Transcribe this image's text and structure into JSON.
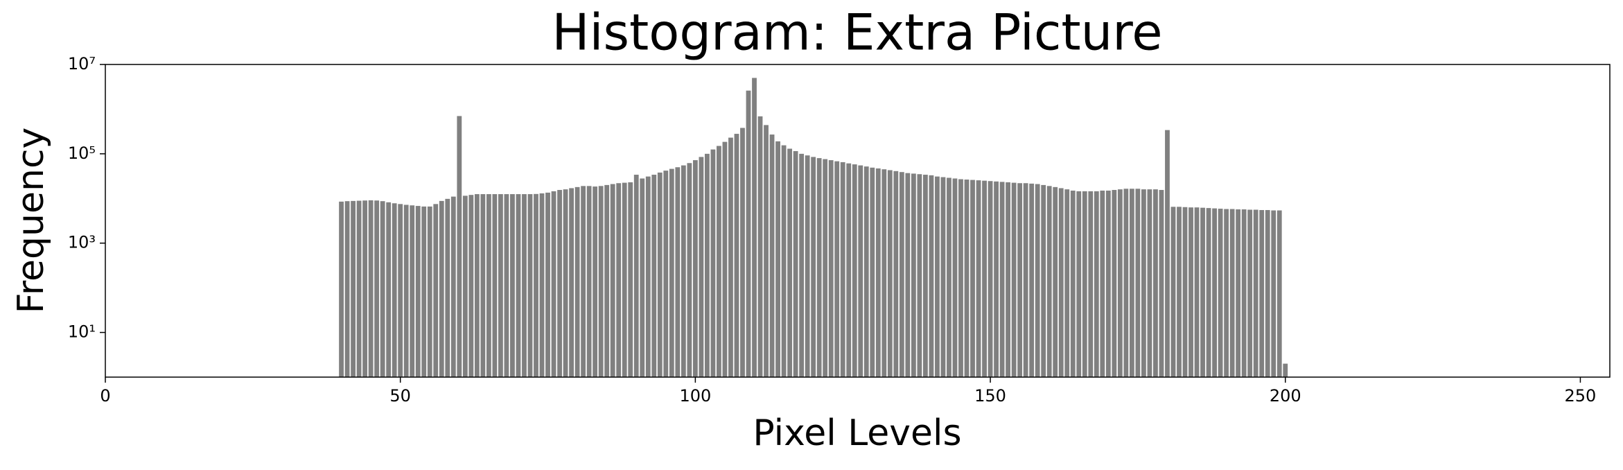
{
  "chart_data": {
    "type": "bar",
    "title": "Histogram: Extra Picture",
    "xlabel": "Pixel Levels",
    "ylabel": "Frequency",
    "x": [
      40,
      41,
      42,
      43,
      44,
      45,
      46,
      47,
      48,
      49,
      50,
      51,
      52,
      53,
      54,
      55,
      56,
      57,
      58,
      59,
      60,
      61,
      62,
      63,
      64,
      65,
      66,
      67,
      68,
      69,
      70,
      71,
      72,
      73,
      74,
      75,
      76,
      77,
      78,
      79,
      80,
      81,
      82,
      83,
      84,
      85,
      86,
      87,
      88,
      89,
      90,
      91,
      92,
      93,
      94,
      95,
      96,
      97,
      98,
      99,
      100,
      101,
      102,
      103,
      104,
      105,
      106,
      107,
      108,
      109,
      110,
      111,
      112,
      113,
      114,
      115,
      116,
      117,
      118,
      119,
      120,
      121,
      122,
      123,
      124,
      125,
      126,
      127,
      128,
      129,
      130,
      131,
      132,
      133,
      134,
      135,
      136,
      137,
      138,
      139,
      140,
      141,
      142,
      143,
      144,
      145,
      146,
      147,
      148,
      149,
      150,
      151,
      152,
      153,
      154,
      155,
      156,
      157,
      158,
      159,
      160,
      161,
      162,
      163,
      164,
      165,
      166,
      167,
      168,
      169,
      170,
      171,
      172,
      173,
      174,
      175,
      176,
      177,
      178,
      179,
      180,
      181,
      182,
      183,
      184,
      185,
      186,
      187,
      188,
      189,
      190,
      191,
      192,
      193,
      194,
      195,
      196,
      197,
      198,
      199,
      200
    ],
    "values": [
      8500,
      8700,
      8800,
      8900,
      9000,
      9100,
      9000,
      8700,
      8200,
      7800,
      7500,
      7200,
      7000,
      6800,
      6600,
      6600,
      7500,
      8800,
      9800,
      11000,
      700000,
      11500,
      12000,
      12500,
      12500,
      12500,
      12500,
      12500,
      12500,
      12500,
      12500,
      12500,
      12500,
      12600,
      13000,
      13500,
      14500,
      15500,
      16000,
      17000,
      18000,
      19000,
      19000,
      18500,
      19000,
      20000,
      21000,
      22000,
      22500,
      23000,
      34000,
      28000,
      31000,
      34000,
      38000,
      42000,
      46000,
      50000,
      55000,
      62000,
      72000,
      85000,
      100000,
      125000,
      150000,
      185000,
      230000,
      280000,
      380000,
      2600000,
      5000000,
      690000,
      440000,
      270000,
      190000,
      155000,
      130000,
      115000,
      100000,
      92000,
      85000,
      80000,
      76000,
      72000,
      68000,
      65000,
      61000,
      58000,
      55000,
      52000,
      49000,
      47000,
      45000,
      43000,
      41000,
      39000,
      37000,
      36000,
      35000,
      34000,
      33000,
      31000,
      30000,
      29000,
      28000,
      27000,
      26500,
      26000,
      25500,
      25000,
      24500,
      24000,
      23500,
      23000,
      22500,
      22000,
      22000,
      21500,
      21000,
      20000,
      19000,
      18000,
      17000,
      16000,
      15000,
      14500,
      14500,
      14500,
      14500,
      15000,
      15000,
      15500,
      16000,
      16500,
      16500,
      16500,
      16000,
      16000,
      16000,
      15500,
      340000,
      6500,
      6500,
      6400,
      6300,
      6300,
      6200,
      6100,
      6000,
      5900,
      5800,
      5800,
      5700,
      5700,
      5600,
      5600,
      5500,
      5500,
      5400,
      5400,
      2
    ],
    "color": "#808080",
    "log_y": true,
    "xlim": [
      0,
      255
    ],
    "xticks": [
      0,
      50,
      100,
      150,
      200,
      250
    ],
    "ylim": [
      1,
      10000000
    ],
    "yticks": [
      {
        "value": 10,
        "label": "10¹"
      },
      {
        "value": 1000,
        "label": "10³"
      },
      {
        "value": 100000,
        "label": "10⁵"
      },
      {
        "value": 10000000,
        "label": "10⁷"
      }
    ]
  }
}
